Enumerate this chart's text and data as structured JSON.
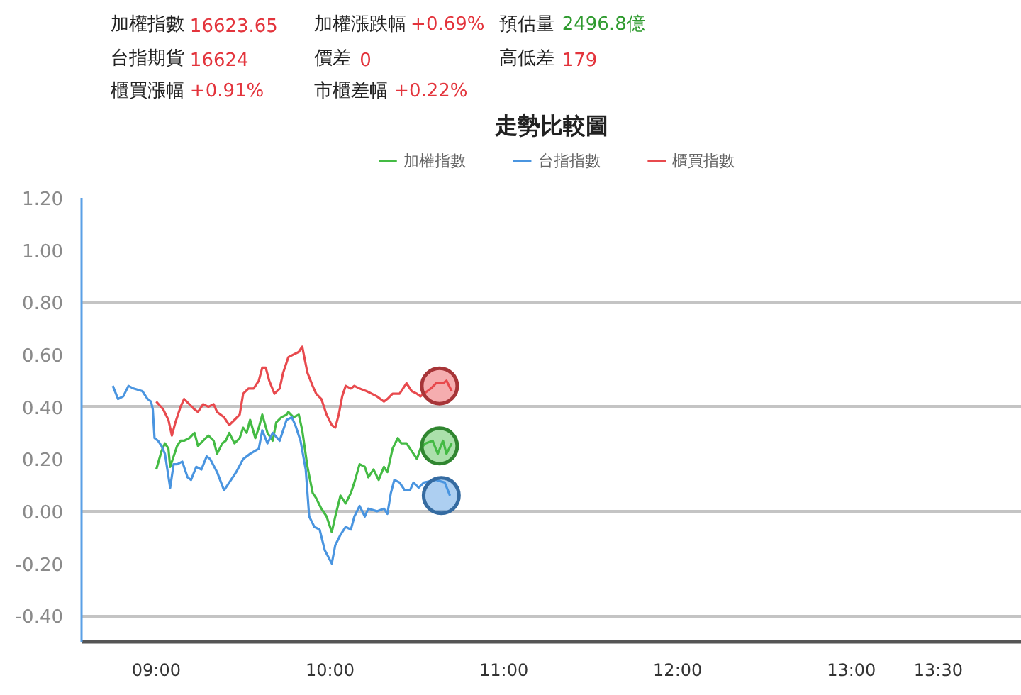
{
  "chart_data": {
    "type": "line",
    "title": "走勢比較圖",
    "annotations": [
      "加權指數",
      "16623.65",
      "加權漲跌幅",
      "+0.69%",
      "預估量",
      "2496.8億",
      "台指期貨",
      "16624",
      "價差",
      "0",
      "高低差",
      "179",
      "櫃買漲幅",
      "+0.91%",
      "市櫃差幅",
      "+0.22%"
    ],
    "xlim": [
      8.57,
      13.98
    ],
    "xticks": [
      {
        "value": 9,
        "label": "09:00"
      },
      {
        "value": 10,
        "label": "10:00"
      },
      {
        "value": 11,
        "label": "11:00"
      },
      {
        "value": 12,
        "label": "12:00"
      },
      {
        "value": 13,
        "label": "13:00"
      },
      {
        "value": 13.5,
        "label": "13:30"
      }
    ],
    "ylim": [
      -0.5,
      1.2
    ],
    "yticks": [
      {
        "value": -0.4,
        "label": "-0.40"
      },
      {
        "value": -0.2,
        "label": "-0.20"
      },
      {
        "value": 0,
        "label": "0.00"
      },
      {
        "value": 0.2,
        "label": "0.20"
      },
      {
        "value": 0.4,
        "label": "0.40"
      },
      {
        "value": 0.6,
        "label": "0.60"
      },
      {
        "value": 0.8,
        "label": "0.80"
      },
      {
        "value": 1.0,
        "label": "1.00"
      },
      {
        "value": 1.2,
        "label": "1.20"
      }
    ],
    "grid": "y",
    "legend": "top",
    "series": [
      {
        "name": "加權指數",
        "color": "#44bb44",
        "x": [
          9.0,
          9.03,
          9.05,
          9.07,
          9.08,
          9.1,
          9.12,
          9.14,
          9.16,
          9.19,
          9.22,
          9.24,
          9.27,
          9.3,
          9.33,
          9.35,
          9.38,
          9.4,
          9.42,
          9.45,
          9.48,
          9.5,
          9.52,
          9.54,
          9.57,
          9.59,
          9.61,
          9.64,
          9.67,
          9.69,
          9.72,
          9.75,
          9.76,
          9.79,
          9.82,
          9.84,
          9.87,
          9.9,
          9.92,
          9.95,
          9.98,
          10.01,
          10.03,
          10.06,
          10.09,
          10.12,
          10.14,
          10.17,
          10.2,
          10.22,
          10.25,
          10.28,
          10.31,
          10.33,
          10.36,
          10.39,
          10.41,
          10.44,
          10.47,
          10.5,
          10.52,
          10.55,
          10.59,
          10.62,
          10.65,
          10.67,
          10.7
        ],
        "values": [
          0.16,
          0.23,
          0.26,
          0.24,
          0.17,
          0.21,
          0.25,
          0.27,
          0.27,
          0.28,
          0.3,
          0.25,
          0.27,
          0.29,
          0.27,
          0.22,
          0.26,
          0.27,
          0.3,
          0.26,
          0.28,
          0.32,
          0.3,
          0.35,
          0.28,
          0.32,
          0.37,
          0.3,
          0.27,
          0.34,
          0.36,
          0.37,
          0.38,
          0.36,
          0.37,
          0.31,
          0.17,
          0.07,
          0.05,
          0.01,
          -0.02,
          -0.08,
          -0.02,
          0.06,
          0.03,
          0.07,
          0.11,
          0.18,
          0.17,
          0.13,
          0.16,
          0.12,
          0.17,
          0.15,
          0.24,
          0.28,
          0.26,
          0.26,
          0.23,
          0.2,
          0.24,
          0.26,
          0.27,
          0.22,
          0.27,
          0.22,
          0.26
        ]
      },
      {
        "name": "台指指數",
        "color": "#4a95e0",
        "x": [
          8.75,
          8.78,
          8.81,
          8.84,
          8.87,
          8.92,
          8.95,
          8.97,
          8.98,
          8.99,
          9.01,
          9.03,
          9.05,
          9.08,
          9.1,
          9.12,
          9.15,
          9.18,
          9.2,
          9.23,
          9.26,
          9.29,
          9.31,
          9.35,
          9.39,
          9.42,
          9.46,
          9.5,
          9.54,
          9.59,
          9.61,
          9.64,
          9.67,
          9.71,
          9.75,
          9.78,
          9.8,
          9.83,
          9.86,
          9.88,
          9.91,
          9.94,
          9.97,
          10.01,
          10.03,
          10.06,
          10.09,
          10.12,
          10.14,
          10.17,
          10.2,
          10.22,
          10.27,
          10.31,
          10.33,
          10.35,
          10.37,
          10.4,
          10.43,
          10.46,
          10.48,
          10.51,
          10.54,
          10.61,
          10.66,
          10.69
        ],
        "values": [
          0.48,
          0.43,
          0.44,
          0.48,
          0.47,
          0.46,
          0.43,
          0.42,
          0.39,
          0.28,
          0.27,
          0.25,
          0.22,
          0.09,
          0.18,
          0.18,
          0.19,
          0.13,
          0.12,
          0.17,
          0.16,
          0.21,
          0.2,
          0.15,
          0.08,
          0.11,
          0.15,
          0.2,
          0.22,
          0.24,
          0.31,
          0.26,
          0.3,
          0.27,
          0.35,
          0.36,
          0.33,
          0.27,
          0.16,
          -0.02,
          -0.06,
          -0.07,
          -0.15,
          -0.2,
          -0.13,
          -0.09,
          -0.06,
          -0.07,
          -0.02,
          0.02,
          -0.02,
          0.01,
          0.0,
          0.01,
          -0.01,
          0.07,
          0.12,
          0.11,
          0.08,
          0.08,
          0.11,
          0.09,
          0.11,
          0.12,
          0.11,
          0.06
        ]
      },
      {
        "name": "櫃買指數",
        "color": "#e84a4e",
        "x": [
          9.0,
          9.04,
          9.07,
          9.09,
          9.11,
          9.14,
          9.16,
          9.19,
          9.22,
          9.24,
          9.27,
          9.3,
          9.33,
          9.35,
          9.39,
          9.42,
          9.45,
          9.48,
          9.5,
          9.53,
          9.56,
          9.59,
          9.61,
          9.63,
          9.65,
          9.68,
          9.71,
          9.73,
          9.76,
          9.79,
          9.82,
          9.84,
          9.87,
          9.9,
          9.92,
          9.95,
          9.98,
          10.01,
          10.03,
          10.05,
          10.07,
          10.09,
          10.12,
          10.14,
          10.17,
          10.21,
          10.24,
          10.27,
          10.31,
          10.33,
          10.36,
          10.4,
          10.44,
          10.47,
          10.5,
          10.52,
          10.58,
          10.61,
          10.65,
          10.67,
          10.7
        ],
        "values": [
          0.42,
          0.39,
          0.35,
          0.29,
          0.34,
          0.4,
          0.43,
          0.41,
          0.39,
          0.38,
          0.41,
          0.4,
          0.41,
          0.38,
          0.36,
          0.33,
          0.35,
          0.37,
          0.45,
          0.47,
          0.47,
          0.5,
          0.55,
          0.55,
          0.5,
          0.45,
          0.47,
          0.53,
          0.59,
          0.6,
          0.61,
          0.63,
          0.53,
          0.48,
          0.45,
          0.43,
          0.37,
          0.33,
          0.32,
          0.37,
          0.44,
          0.48,
          0.47,
          0.48,
          0.47,
          0.46,
          0.45,
          0.44,
          0.42,
          0.43,
          0.45,
          0.45,
          0.49,
          0.46,
          0.45,
          0.44,
          0.47,
          0.49,
          0.49,
          0.5,
          0.46
        ]
      },
      {
        "type": "scatter",
        "marker": "circle",
        "x": [
          10.63,
          10.63,
          10.64
        ],
        "values": [
          0.48,
          0.25,
          0.06
        ],
        "colors": [
          "#e84a4e",
          "#44bb44",
          "#4a95e0"
        ]
      }
    ]
  }
}
